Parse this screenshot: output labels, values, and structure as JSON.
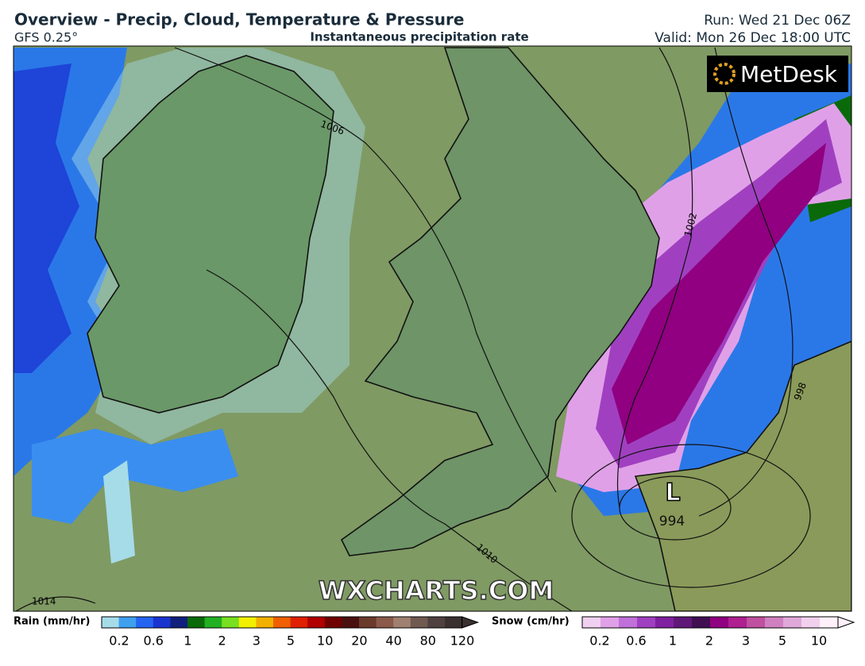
{
  "header": {
    "title": "Overview - Precip, Cloud, Temperature & Pressure",
    "model": "GFS 0.25°",
    "subtitle": "Instantaneous precipitation rate",
    "run": "Run: Wed 21 Dec 06Z",
    "valid": "Valid: Mon 26 Dec 18:00 UTC"
  },
  "map": {
    "isobar_labels": [
      "1006",
      "1002",
      "998",
      "1010",
      "1014"
    ],
    "low": {
      "symbol": "L",
      "pressure": "994"
    },
    "watermark": "WXCHARTS.COM",
    "logo": "MetDesk"
  },
  "legend": {
    "rain": {
      "label": "Rain (mm/hr)",
      "ticks": [
        "0.2",
        "0.6",
        "1",
        "2",
        "3",
        "5",
        "10",
        "20",
        "40",
        "80",
        "120"
      ],
      "colors": [
        "#a6dce8",
        "#3fa0f0",
        "#2464f0",
        "#1a34d0",
        "#10207c",
        "#0a6a0a",
        "#22b022",
        "#78e020",
        "#f2f000",
        "#f2b000",
        "#f06000",
        "#e02000",
        "#b00000",
        "#700000",
        "#4a1010",
        "#6a3a2a",
        "#8a5a4a",
        "#a08070",
        "#705a50",
        "#504040",
        "#3a3030"
      ]
    },
    "snow": {
      "label": "Snow (cm/hr)",
      "ticks": [
        "0.2",
        "0.6",
        "1",
        "2",
        "3",
        "5",
        "10"
      ],
      "colors": [
        "#f0d0f0",
        "#e0a0e8",
        "#c070d8",
        "#a040c0",
        "#8020a0",
        "#601878",
        "#401050",
        "#900080",
        "#b02090",
        "#c050a0",
        "#d080c0",
        "#e0a8d8",
        "#f0d0ec",
        "#fff0fa"
      ]
    }
  }
}
